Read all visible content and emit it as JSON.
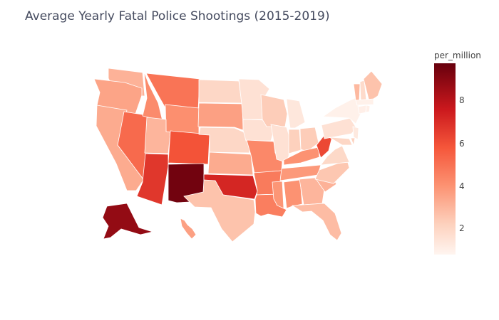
{
  "title": "Average Yearly Fatal Police Shootings (2015-2019)",
  "colorbar": {
    "title": "per_million",
    "ticks": [
      "2",
      "4",
      "6",
      "8"
    ],
    "range": [
      0.7,
      9.7
    ],
    "colors": [
      "#fff5f0",
      "#fdd1bd",
      "#fc9272",
      "#f5563a",
      "#cb181d",
      "#67000d"
    ]
  },
  "chart_data": {
    "type": "choropleth",
    "scope": "usa",
    "metric": "per_million",
    "values": {
      "NM": 9.5,
      "AK": 8.9,
      "OK": 7.5,
      "AZ": 7.0,
      "WV": 6.5,
      "CO": 6.2,
      "NV": 5.5,
      "MT": 5.2,
      "AR": 5.0,
      "LA": 4.9,
      "MO": 4.6,
      "ID": 4.5,
      "WY": 4.4,
      "AL": 4.3,
      "KY": 4.3,
      "MS": 4.2,
      "TN": 4.1,
      "SD": 3.9,
      "HI": 3.9,
      "OR": 3.8,
      "WA": 3.4,
      "KS": 3.6,
      "CA": 3.6,
      "SC": 3.4,
      "GA": 3.3,
      "UT": 3.3,
      "VT": 3.2,
      "FL": 3.1,
      "ME": 2.9,
      "TX": 2.9,
      "NC": 2.8,
      "WI": 2.6,
      "OH": 2.6,
      "IN": 2.5,
      "DE": 2.4,
      "ND": 2.2,
      "NE": 2.2,
      "MD": 2.2,
      "VA": 2.1,
      "NH": 2.0,
      "IA": 1.7,
      "MN": 1.7,
      "IL": 1.7,
      "PA": 1.7,
      "MI": 1.4,
      "NJ": 1.3,
      "CT": 1.0,
      "RI": 1.0,
      "MA": 0.9,
      "NY": 0.9
    }
  }
}
